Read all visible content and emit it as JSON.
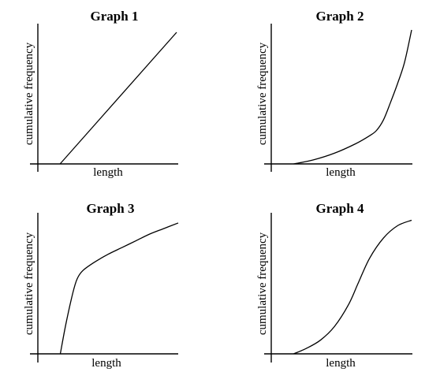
{
  "chart_data": [
    {
      "type": "line",
      "title": "Graph 1",
      "xlabel": "length",
      "ylabel": "cumulative frequency",
      "xlim": [
        0,
        1
      ],
      "ylim": [
        0,
        1
      ],
      "grid": false,
      "ticks": false,
      "series": [
        {
          "x": [
            0.16,
            1.0
          ],
          "y": [
            0.0,
            1.0
          ]
        }
      ]
    },
    {
      "type": "line",
      "title": "Graph 2",
      "xlabel": "length",
      "ylabel": "cumulative frequency",
      "xlim": [
        0,
        1
      ],
      "ylim": [
        0,
        1
      ],
      "grid": false,
      "ticks": false,
      "series": [
        {
          "x": [
            0.16,
            0.3,
            0.45,
            0.6,
            0.7,
            0.75,
            0.8,
            0.85,
            0.9,
            0.95,
            1.0
          ],
          "y": [
            0.0,
            0.03,
            0.08,
            0.15,
            0.21,
            0.25,
            0.33,
            0.46,
            0.6,
            0.76,
            1.0
          ]
        }
      ]
    },
    {
      "type": "line",
      "title": "Graph 3",
      "xlabel": "length",
      "ylabel": "cumulative frequency",
      "xlim": [
        0,
        1
      ],
      "ylim": [
        0,
        1
      ],
      "grid": false,
      "ticks": false,
      "series": [
        {
          "x": [
            0.16,
            0.2,
            0.25,
            0.28,
            0.32,
            0.4,
            0.5,
            0.6,
            0.7,
            0.8,
            0.9,
            1.0
          ],
          "y": [
            0.0,
            0.22,
            0.45,
            0.55,
            0.61,
            0.67,
            0.73,
            0.78,
            0.83,
            0.88,
            0.92,
            0.96
          ]
        }
      ]
    },
    {
      "type": "line",
      "title": "Graph 4",
      "xlabel": "length",
      "ylabel": "cumulative frequency",
      "xlim": [
        0,
        1
      ],
      "ylim": [
        0,
        1
      ],
      "grid": false,
      "ticks": false,
      "series": [
        {
          "x": [
            0.16,
            0.25,
            0.35,
            0.45,
            0.55,
            0.62,
            0.7,
            0.8,
            0.9,
            1.0
          ],
          "y": [
            0.0,
            0.04,
            0.1,
            0.2,
            0.36,
            0.52,
            0.7,
            0.85,
            0.94,
            0.98
          ]
        }
      ]
    }
  ]
}
